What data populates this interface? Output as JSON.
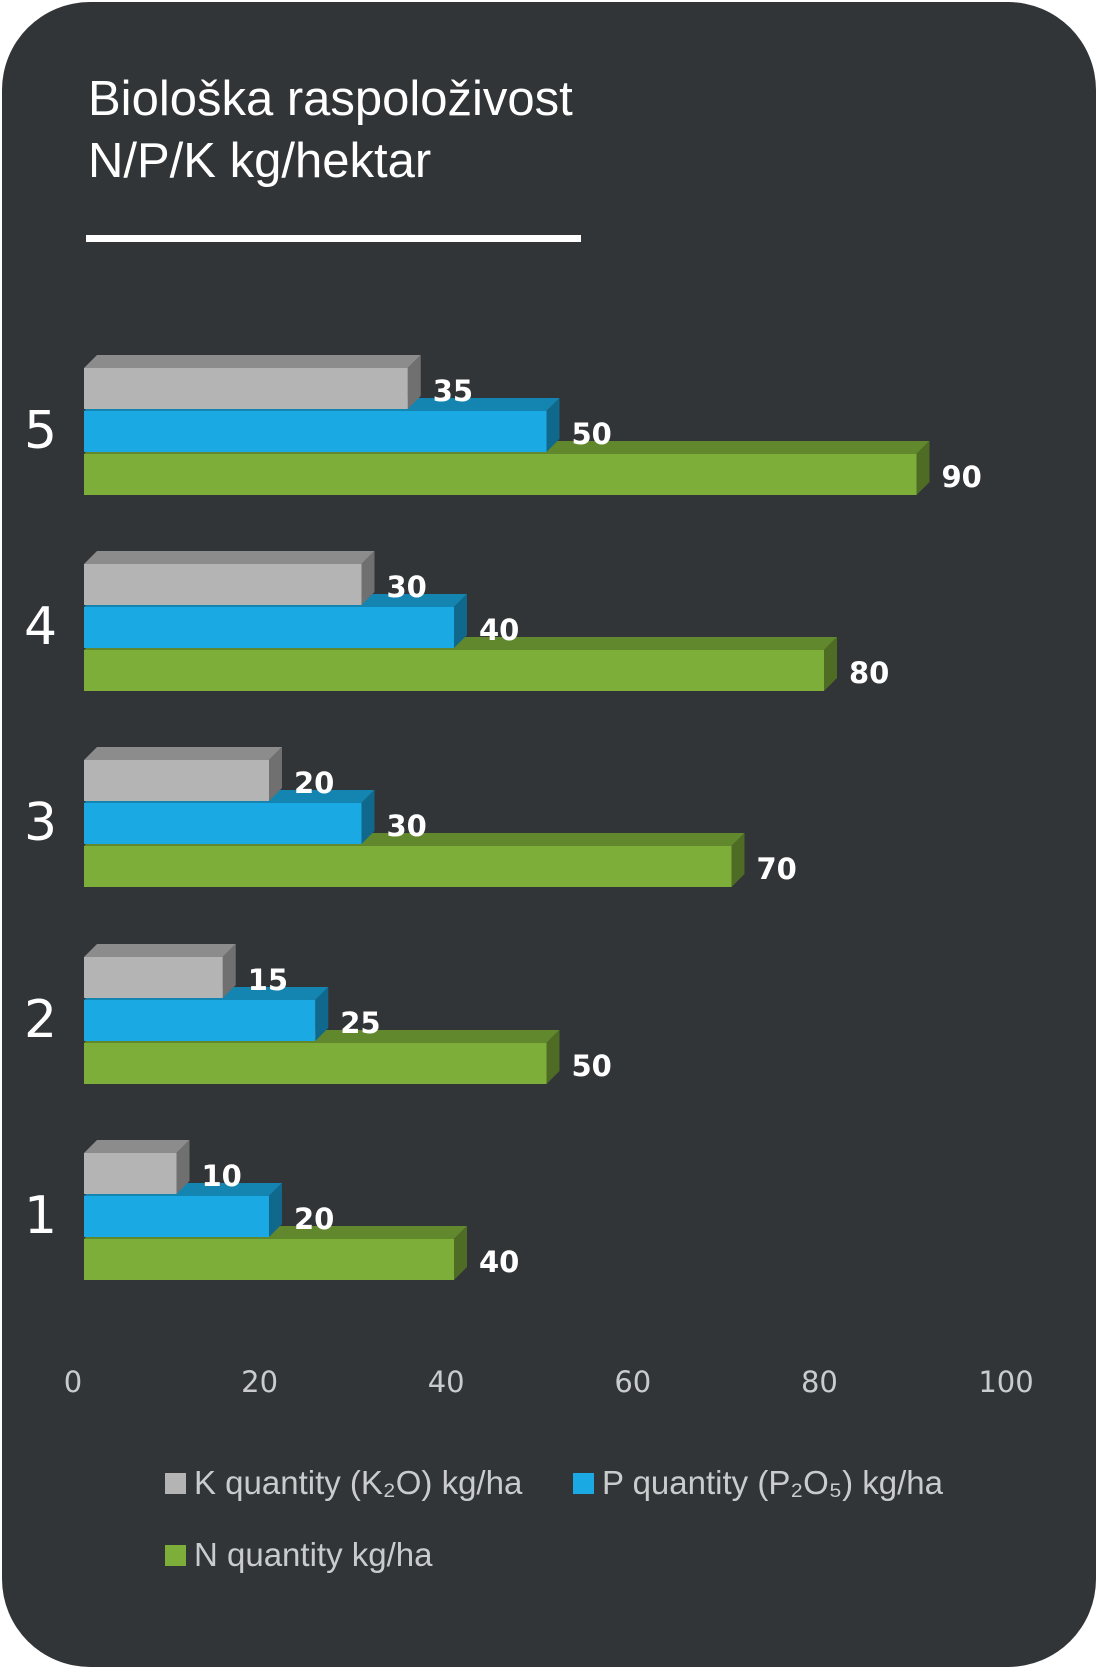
{
  "chart_data": {
    "type": "bar",
    "orientation": "horizontal",
    "title": [
      "Biološka raspoloživost",
      "N/P/K kg/hektar"
    ],
    "categories": [
      "1",
      "2",
      "3",
      "4",
      "5"
    ],
    "series": [
      {
        "name": "K quantity (K₂O) kg/ha",
        "color": "#b4b4b4",
        "values": [
          10,
          15,
          20,
          30,
          35
        ]
      },
      {
        "name": "P quantity (P₂O₅) kg/ha",
        "color": "#1aa9e2",
        "values": [
          20,
          25,
          30,
          40,
          50
        ]
      },
      {
        "name": "N quantity kg/ha",
        "color": "#7dae3a",
        "values": [
          40,
          50,
          70,
          80,
          90
        ]
      }
    ],
    "xlim": [
      0,
      100
    ],
    "xticks": [
      0,
      20,
      40,
      60,
      80,
      100
    ],
    "data_labels": true,
    "legend_position": "bottom",
    "grid": false,
    "style": "3d"
  }
}
